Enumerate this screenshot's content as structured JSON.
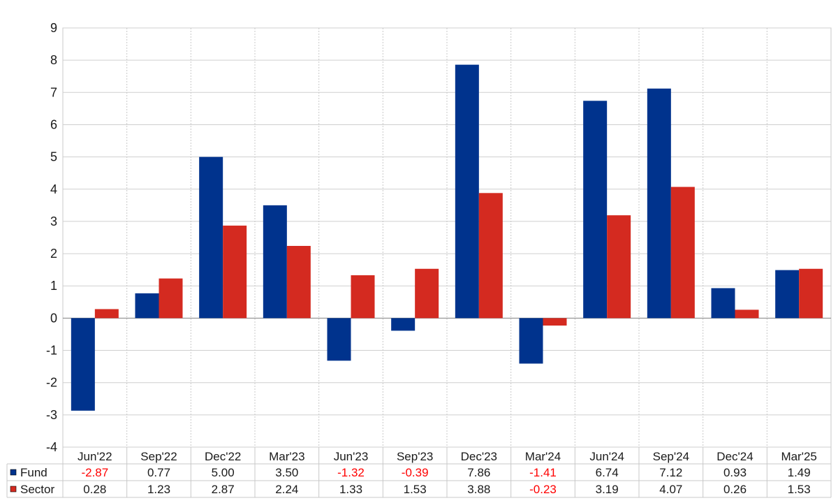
{
  "chart_data": {
    "type": "bar",
    "categories": [
      "Jun'22",
      "Sep'22",
      "Dec'22",
      "Mar'23",
      "Jun'23",
      "Sep'23",
      "Dec'23",
      "Mar'24",
      "Jun'24",
      "Sep'24",
      "Dec'24",
      "Mar'25"
    ],
    "series": [
      {
        "name": "Fund",
        "color": "#00338d",
        "values": [
          -2.87,
          0.77,
          5.0,
          3.5,
          -1.32,
          -0.39,
          7.86,
          -1.41,
          6.74,
          7.12,
          0.93,
          1.49
        ],
        "labels": [
          "-2.87",
          "0.77",
          "5.00",
          "3.50",
          "-1.32",
          "-0.39",
          "7.86",
          "-1.41",
          "6.74",
          "7.12",
          "0.93",
          "1.49"
        ]
      },
      {
        "name": "Sector",
        "color": "#d42a20",
        "values": [
          0.28,
          1.23,
          2.87,
          2.24,
          1.33,
          1.53,
          3.88,
          -0.23,
          3.19,
          4.07,
          0.26,
          1.53
        ],
        "labels": [
          "0.28",
          "1.23",
          "2.87",
          "2.24",
          "1.33",
          "1.53",
          "3.88",
          "-0.23",
          "3.19",
          "4.07",
          "0.26",
          "1.53"
        ]
      }
    ],
    "yticks": [
      "9",
      "8",
      "7",
      "6",
      "5",
      "4",
      "3",
      "2",
      "1",
      "0",
      "-1",
      "-2",
      "-3",
      "-4"
    ],
    "ylim": [
      -4,
      9
    ],
    "grid": true,
    "legend": "table-below",
    "negative_label_color": "#ff0000"
  }
}
